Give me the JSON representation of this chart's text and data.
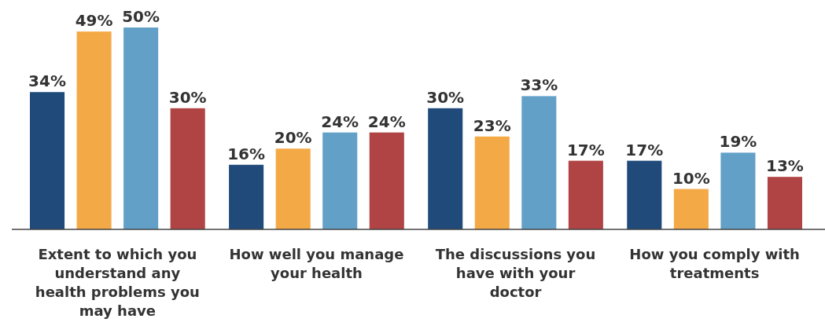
{
  "chart_data": {
    "type": "bar",
    "categories": [
      "Extent to which you understand any health problems you may have",
      "How well you manage your health",
      "The discussions you have with your doctor",
      "How you comply with treatments"
    ],
    "series": [
      {
        "color": "#1f4a7a",
        "values": [
          34,
          16,
          30,
          17
        ],
        "value_labels": [
          "34%",
          "16%",
          "30%",
          "17%"
        ]
      },
      {
        "color": "#f4a947",
        "values": [
          49,
          20,
          23,
          10
        ],
        "value_labels": [
          "49%",
          "20%",
          "23%",
          "10%"
        ]
      },
      {
        "color": "#62a0c8",
        "values": [
          50,
          24,
          33,
          19
        ],
        "value_labels": [
          "50%",
          "24%",
          "33%",
          "19%"
        ]
      },
      {
        "color": "#b04444",
        "values": [
          30,
          24,
          17,
          13
        ],
        "value_labels": [
          "30%",
          "24%",
          "17%",
          "13%"
        ]
      }
    ]
  }
}
